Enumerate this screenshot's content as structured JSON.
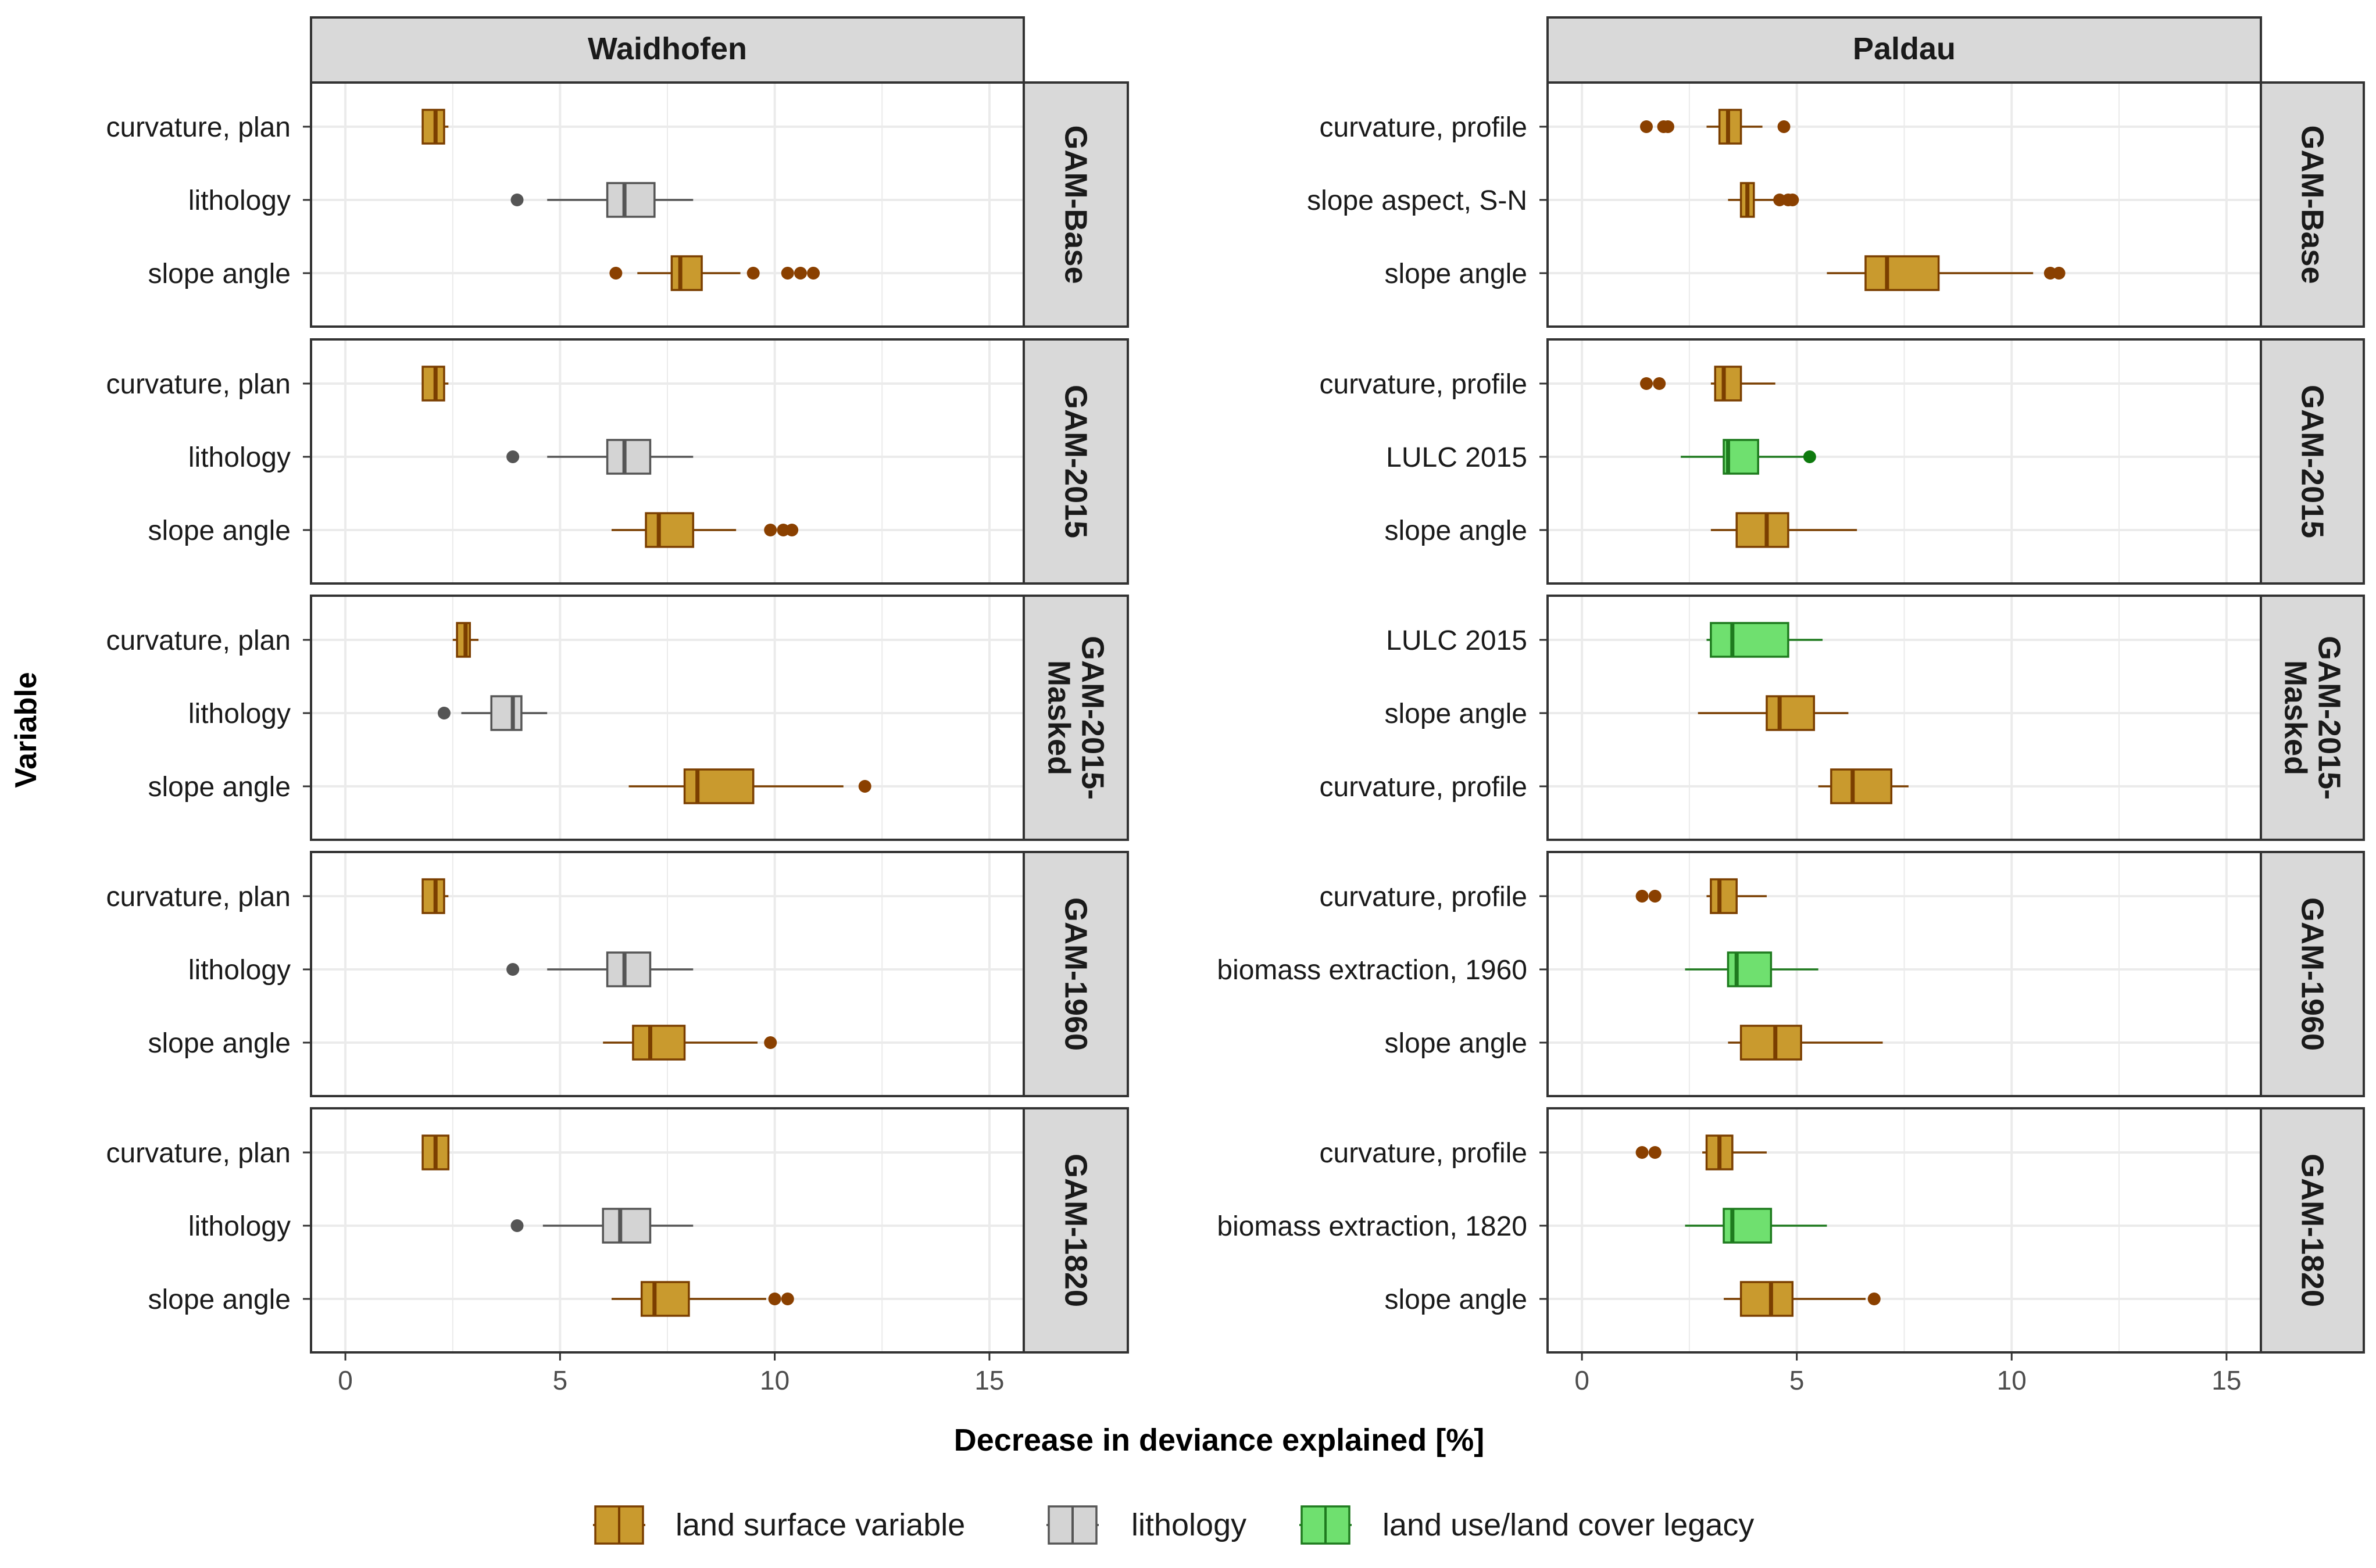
{
  "colors": {
    "land_surface_fill": "#C99A2E",
    "land_surface_line": "#7A3E00",
    "land_surface_outlier": "#8A4000",
    "lithology_fill": "#D4D4D4",
    "lithology_line": "#555555",
    "lithology_outlier": "#555555",
    "lulc_fill": "#6FE06F",
    "lulc_line": "#1E7A1E",
    "lulc_outlier": "#0E7A0E",
    "grid": "#EBEBEB",
    "strip_fill": "#D9D9D9",
    "panel_border": "#333333"
  },
  "chart_data": {
    "type": "boxplot",
    "title": "",
    "xlabel": "Decrease in deviance explained [%]",
    "ylabel": "Variable",
    "xlim": [
      -0.8,
      15.8
    ],
    "xticks": [
      0,
      5,
      10,
      15
    ],
    "xtick_labels": [
      "0",
      "5",
      "10",
      "15"
    ],
    "grid": true,
    "legend": {
      "position": "bottom",
      "entries": [
        {
          "key": "land_surface",
          "label": "land surface variable"
        },
        {
          "key": "lithology",
          "label": "lithology"
        },
        {
          "key": "lulc",
          "label": "land use/land cover legacy"
        }
      ]
    },
    "columns": [
      "Waidhofen",
      "Paldau"
    ],
    "rows": [
      {
        "label_lines": [
          "GAM-Base"
        ]
      },
      {
        "label_lines": [
          "GAM-2015"
        ]
      },
      {
        "label_lines": [
          "GAM-2015-",
          "Masked"
        ]
      },
      {
        "label_lines": [
          "GAM-1960"
        ]
      },
      {
        "label_lines": [
          "GAM-1820"
        ]
      }
    ],
    "panels": [
      [
        {
          "items": [
            {
              "label": "curvature, plan",
              "group": "land_surface",
              "wlo": 1.8,
              "q1": 1.8,
              "med": 2.1,
              "q3": 2.3,
              "whi": 2.4,
              "out": []
            },
            {
              "label": "lithology",
              "group": "lithology",
              "wlo": 4.7,
              "q1": 6.1,
              "med": 6.5,
              "q3": 7.2,
              "whi": 8.1,
              "out": [
                4.0
              ]
            },
            {
              "label": "slope angle",
              "group": "land_surface",
              "wlo": 6.8,
              "q1": 7.6,
              "med": 7.8,
              "q3": 8.3,
              "whi": 9.2,
              "out": [
                6.3,
                9.5,
                10.3,
                10.6,
                10.9
              ]
            }
          ]
        },
        {
          "items": [
            {
              "label": "curvature, profile",
              "group": "land_surface",
              "wlo": 2.9,
              "q1": 3.2,
              "med": 3.4,
              "q3": 3.7,
              "whi": 4.2,
              "out": [
                1.5,
                1.9,
                2.0,
                4.7
              ]
            },
            {
              "label": "slope aspect, S-N",
              "group": "land_surface",
              "wlo": 3.4,
              "q1": 3.7,
              "med": 3.85,
              "q3": 4.0,
              "whi": 4.7,
              "out": [
                4.6,
                4.8,
                4.9
              ]
            },
            {
              "label": "slope angle",
              "group": "land_surface",
              "wlo": 5.7,
              "q1": 6.6,
              "med": 7.1,
              "q3": 8.3,
              "whi": 10.5,
              "out": [
                10.9,
                11.1
              ]
            }
          ]
        }
      ],
      [
        {
          "items": [
            {
              "label": "curvature, plan",
              "group": "land_surface",
              "wlo": 1.8,
              "q1": 1.8,
              "med": 2.1,
              "q3": 2.3,
              "whi": 2.4,
              "out": []
            },
            {
              "label": "lithology",
              "group": "lithology",
              "wlo": 4.7,
              "q1": 6.1,
              "med": 6.5,
              "q3": 7.1,
              "whi": 8.1,
              "out": [
                3.9
              ]
            },
            {
              "label": "slope angle",
              "group": "land_surface",
              "wlo": 6.2,
              "q1": 7.0,
              "med": 7.3,
              "q3": 8.1,
              "whi": 9.1,
              "out": [
                9.9,
                10.2,
                10.4
              ]
            }
          ]
        },
        {
          "items": [
            {
              "label": "curvature, profile",
              "group": "land_surface",
              "wlo": 3.0,
              "q1": 3.1,
              "med": 3.3,
              "q3": 3.7,
              "whi": 4.5,
              "out": [
                1.5,
                1.8
              ]
            },
            {
              "label": "LULC 2015",
              "group": "lulc",
              "wlo": 2.3,
              "q1": 3.3,
              "med": 3.4,
              "q3": 4.1,
              "whi": 5.2,
              "out": [
                5.3
              ]
            },
            {
              "label": "slope angle",
              "group": "land_surface",
              "wlo": 3.0,
              "q1": 3.6,
              "med": 4.3,
              "q3": 4.8,
              "whi": 6.4,
              "out": []
            }
          ]
        }
      ],
      [
        {
          "items": [
            {
              "label": "curvature, plan",
              "group": "land_surface",
              "wlo": 2.5,
              "q1": 2.6,
              "med": 2.8,
              "q3": 2.9,
              "whi": 3.1,
              "out": []
            },
            {
              "label": "lithology",
              "group": "lithology",
              "wlo": 2.7,
              "q1": 3.4,
              "med": 3.9,
              "q3": 4.1,
              "whi": 4.7,
              "out": [
                2.3
              ]
            },
            {
              "label": "slope angle",
              "group": "land_surface",
              "wlo": 6.6,
              "q1": 7.9,
              "med": 8.2,
              "q3": 9.5,
              "whi": 11.6,
              "out": [
                12.1
              ]
            }
          ]
        },
        {
          "items": [
            {
              "label": "LULC 2015",
              "group": "lulc",
              "wlo": 2.9,
              "q1": 3.0,
              "med": 3.5,
              "q3": 4.8,
              "whi": 5.6,
              "out": []
            },
            {
              "label": "slope angle",
              "group": "land_surface",
              "wlo": 2.7,
              "q1": 4.3,
              "med": 4.6,
              "q3": 5.4,
              "whi": 6.2,
              "out": []
            },
            {
              "label": "curvature, profile",
              "group": "land_surface",
              "wlo": 5.5,
              "q1": 5.8,
              "med": 6.3,
              "q3": 7.2,
              "whi": 7.6,
              "out": []
            }
          ]
        }
      ],
      [
        {
          "items": [
            {
              "label": "curvature, plan",
              "group": "land_surface",
              "wlo": 1.8,
              "q1": 1.8,
              "med": 2.1,
              "q3": 2.3,
              "whi": 2.4,
              "out": []
            },
            {
              "label": "lithology",
              "group": "lithology",
              "wlo": 4.7,
              "q1": 6.1,
              "med": 6.5,
              "q3": 7.1,
              "whi": 8.1,
              "out": [
                3.9
              ]
            },
            {
              "label": "slope angle",
              "group": "land_surface",
              "wlo": 6.0,
              "q1": 6.7,
              "med": 7.1,
              "q3": 7.9,
              "whi": 9.6,
              "out": [
                9.9
              ]
            }
          ]
        },
        {
          "items": [
            {
              "label": "curvature, profile",
              "group": "land_surface",
              "wlo": 2.9,
              "q1": 3.0,
              "med": 3.2,
              "q3": 3.6,
              "whi": 4.3,
              "out": [
                1.4,
                1.7
              ]
            },
            {
              "label": "biomass extraction, 1960",
              "group": "lulc",
              "wlo": 2.4,
              "q1": 3.4,
              "med": 3.6,
              "q3": 4.4,
              "whi": 5.5,
              "out": []
            },
            {
              "label": "slope angle",
              "group": "land_surface",
              "wlo": 3.4,
              "q1": 3.7,
              "med": 4.5,
              "q3": 5.1,
              "whi": 7.0,
              "out": []
            }
          ]
        }
      ],
      [
        {
          "items": [
            {
              "label": "curvature, plan",
              "group": "land_surface",
              "wlo": 1.8,
              "q1": 1.8,
              "med": 2.1,
              "q3": 2.4,
              "whi": 2.4,
              "out": []
            },
            {
              "label": "lithology",
              "group": "lithology",
              "wlo": 4.6,
              "q1": 6.0,
              "med": 6.4,
              "q3": 7.1,
              "whi": 8.1,
              "out": [
                4.0
              ]
            },
            {
              "label": "slope angle",
              "group": "land_surface",
              "wlo": 6.2,
              "q1": 6.9,
              "med": 7.2,
              "q3": 8.0,
              "whi": 9.8,
              "out": [
                10.0,
                10.3
              ]
            }
          ]
        },
        {
          "items": [
            {
              "label": "curvature, profile",
              "group": "land_surface",
              "wlo": 2.8,
              "q1": 2.9,
              "med": 3.2,
              "q3": 3.5,
              "whi": 4.3,
              "out": [
                1.4,
                1.7
              ]
            },
            {
              "label": "biomass extraction, 1820",
              "group": "lulc",
              "wlo": 2.4,
              "q1": 3.3,
              "med": 3.5,
              "q3": 4.4,
              "whi": 5.7,
              "out": []
            },
            {
              "label": "slope angle",
              "group": "land_surface",
              "wlo": 3.3,
              "q1": 3.7,
              "med": 4.4,
              "q3": 4.9,
              "whi": 6.6,
              "out": [
                6.8
              ]
            }
          ]
        }
      ]
    ]
  }
}
